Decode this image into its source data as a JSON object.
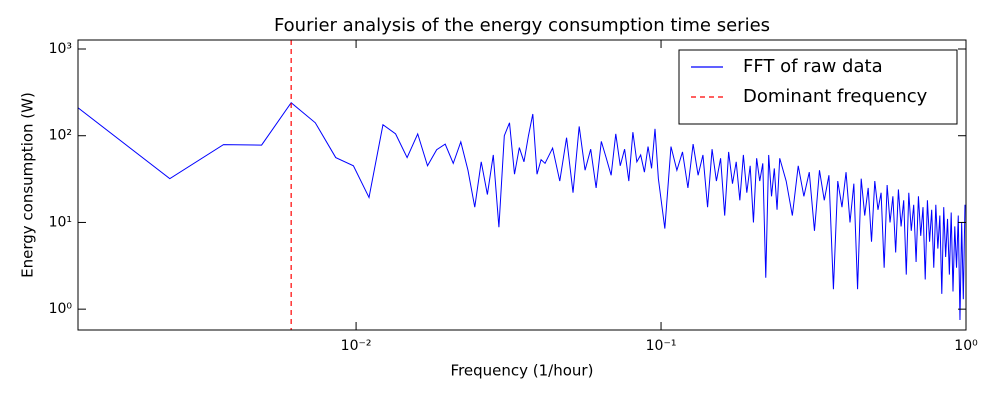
{
  "chart_data": {
    "type": "line",
    "title": "Fourier analysis of the energy consumption time series",
    "x_label": "Frequency (1/hour)",
    "y_label": "Energy consumption (W)",
    "x_scale": "log",
    "y_scale": "log",
    "xlim": [
      0.001225,
      1
    ],
    "ylim": [
      0.575,
      1270
    ],
    "xticks": [
      {
        "value": 0.01,
        "label": "10⁻²"
      },
      {
        "value": 0.1,
        "label": "10⁻¹"
      },
      {
        "value": 1,
        "label": "10⁰"
      }
    ],
    "yticks": [
      {
        "value": 1,
        "label": "10⁰"
      },
      {
        "value": 10,
        "label": "10¹"
      },
      {
        "value": 100,
        "label": "10²"
      },
      {
        "value": 1000,
        "label": "10³"
      }
    ],
    "legend": "upper right",
    "x": [
      0.001225,
      0.00245,
      0.003675,
      0.0049,
      0.006125,
      0.00735,
      0.008575,
      0.0098,
      0.011025,
      0.01225,
      0.013475,
      0.0147,
      0.015925,
      0.01715,
      0.018375,
      0.0196,
      0.020825,
      0.02205,
      0.023275,
      0.0245,
      0.025725,
      0.02695,
      0.028175,
      0.0294,
      0.030625,
      0.03185,
      0.033075,
      0.0343,
      0.035525,
      0.03675,
      0.037975,
      0.0392,
      0.040425,
      0.04165,
      0.0441,
      0.04655,
      0.049,
      0.05145,
      0.0539,
      0.05635,
      0.0588,
      0.06125,
      0.0637,
      0.06615,
      0.0686,
      0.07105,
      0.0735,
      0.07595,
      0.0784,
      0.08085,
      0.0833,
      0.08575,
      0.0882,
      0.09065,
      0.0931,
      0.09555,
      0.098,
      0.1029,
      0.1078,
      0.1127,
      0.1176,
      0.1225,
      0.1274,
      0.1323,
      0.1372,
      0.1421,
      0.147,
      0.1519,
      0.1568,
      0.1617,
      0.1666,
      0.1715,
      0.1764,
      0.1813,
      0.1862,
      0.1911,
      0.196,
      0.2009,
      0.2058,
      0.2107,
      0.2156,
      0.2205,
      0.2254,
      0.2303,
      0.2352,
      0.2401,
      0.245,
      0.25725,
      0.2695,
      0.28175,
      0.294,
      0.30625,
      0.3185,
      0.33075,
      0.343,
      0.35525,
      0.3675,
      0.37975,
      0.392,
      0.40425,
      0.4165,
      0.42875,
      0.441,
      0.45325,
      0.4655,
      0.47775,
      0.49,
      0.50225,
      0.5145,
      0.52675,
      0.539,
      0.55125,
      0.5635,
      0.57575,
      0.588,
      0.60025,
      0.6125,
      0.62475,
      0.637,
      0.64925,
      0.6615,
      0.67375,
      0.686,
      0.69825,
      0.7105,
      0.72275,
      0.735,
      0.74725,
      0.7595,
      0.77175,
      0.784,
      0.79625,
      0.8085,
      0.82075,
      0.833,
      0.84525,
      0.8575,
      0.86975,
      0.882,
      0.89425,
      0.9065,
      0.91875,
      0.931,
      0.94325,
      0.9555,
      0.96775,
      0.98,
      0.99225
    ],
    "series": [
      {
        "name": "FFT of raw data",
        "color": "#0000ff",
        "values": [
          210,
          32,
          79,
          78,
          240,
          141,
          56,
          45,
          19.4,
          134,
          105,
          56,
          105,
          45,
          69,
          80,
          48,
          85,
          40,
          15,
          50,
          21,
          60,
          8.8,
          100,
          141,
          36,
          73,
          50,
          100,
          178,
          36,
          53,
          48,
          72,
          30,
          95,
          22,
          128,
          40,
          70,
          25,
          86,
          55,
          35,
          105,
          45,
          70,
          30,
          110,
          50,
          60,
          38,
          75,
          42,
          120,
          32,
          8.5,
          75,
          40,
          65,
          25,
          80,
          35,
          60,
          15,
          70,
          30,
          55,
          12,
          65,
          28,
          50,
          18,
          60,
          22,
          45,
          10,
          55,
          30,
          48,
          2.3,
          60,
          20,
          42,
          14,
          55,
          30,
          12,
          45,
          20,
          38,
          8,
          40,
          18,
          35,
          1.7,
          30,
          15,
          38,
          10,
          28,
          1.7,
          32,
          12,
          25,
          6,
          30,
          14,
          22,
          3,
          27,
          10,
          20,
          4.5,
          24,
          9,
          18,
          2.5,
          22,
          8,
          16,
          3.5,
          20,
          7,
          15,
          2.2,
          18,
          6,
          14,
          3,
          16,
          5,
          12,
          1.5,
          15,
          4,
          11,
          2.5,
          13,
          1.6,
          9,
          3,
          12,
          0.75,
          10,
          1.3,
          16
        ]
      }
    ],
    "vline": {
      "name": "Dominant frequency",
      "value": 0.006125,
      "color": "#ff0000"
    }
  }
}
